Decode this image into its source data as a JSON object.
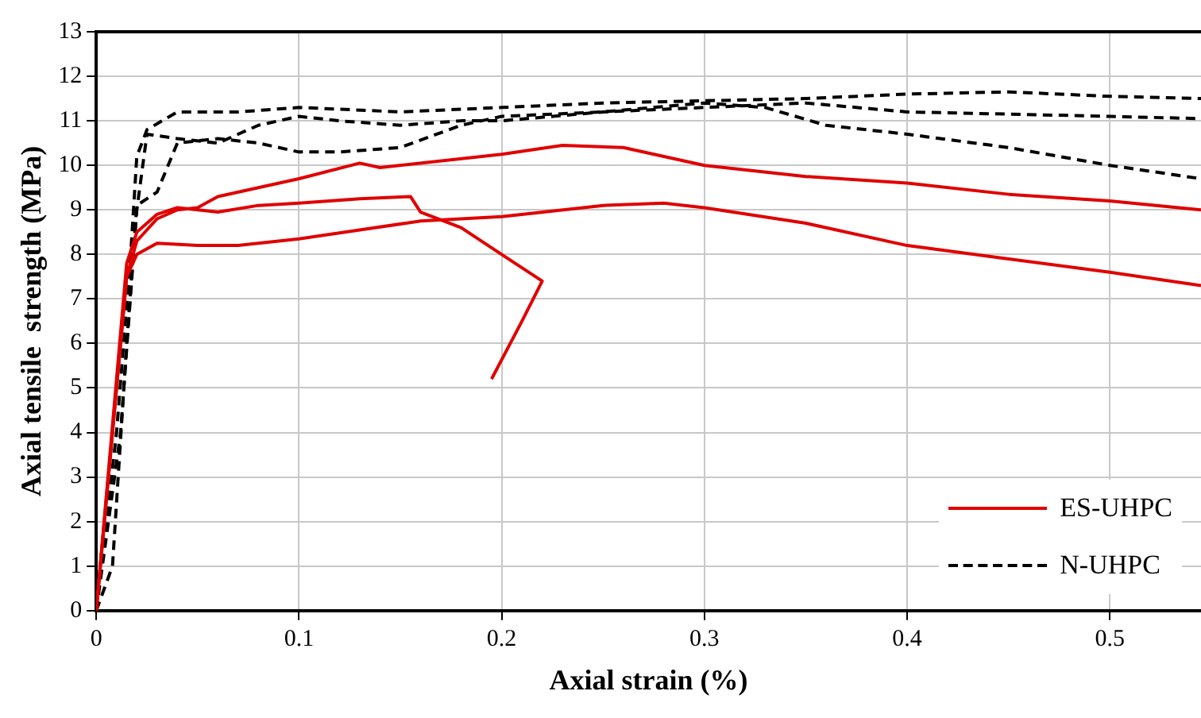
{
  "chart_data": {
    "type": "line",
    "xlabel": "Axial strain (%)",
    "ylabel": "Axial tensile  strength (MPa)",
    "xlim": [
      0,
      0.545
    ],
    "ylim": [
      0,
      13
    ],
    "xticks": [
      0,
      0.1,
      0.2,
      0.3,
      0.4,
      0.5
    ],
    "yticks": [
      0,
      1,
      2,
      3,
      4,
      5,
      6,
      7,
      8,
      9,
      10,
      11,
      12,
      13
    ],
    "grid": true,
    "legend": "bottom right",
    "marker": "none",
    "series": [
      {
        "name": "ES-UHPC",
        "color": "#e00000",
        "line_style": "solid",
        "x": [
          0,
          0.01,
          0.015,
          0.02,
          0.03,
          0.04,
          0.05,
          0.06,
          0.08,
          0.1,
          0.13,
          0.14,
          0.2,
          0.23,
          0.26,
          0.3,
          0.35,
          0.4,
          0.45,
          0.5,
          0.545
        ],
        "values": [
          0,
          5,
          7.5,
          8.3,
          8.8,
          9.0,
          9.05,
          9.3,
          9.5,
          9.7,
          10.05,
          9.95,
          10.25,
          10.45,
          10.4,
          10.0,
          9.75,
          9.6,
          9.35,
          9.2,
          9.0
        ]
      },
      {
        "color": "#e00000",
        "line_style": "solid",
        "x": [
          0,
          0.015,
          0.02,
          0.03,
          0.05,
          0.07,
          0.1,
          0.13,
          0.16,
          0.2,
          0.25,
          0.28,
          0.3,
          0.35,
          0.4,
          0.45,
          0.5,
          0.545
        ],
        "values": [
          0,
          7.5,
          8.0,
          8.25,
          8.2,
          8.2,
          8.35,
          8.55,
          8.75,
          8.85,
          9.1,
          9.15,
          9.05,
          8.7,
          8.2,
          7.9,
          7.6,
          7.3
        ]
      },
      {
        "color": "#e00000",
        "line_style": "solid",
        "x": [
          0,
          0.015,
          0.02,
          0.03,
          0.04,
          0.06,
          0.08,
          0.1,
          0.13,
          0.155,
          0.16,
          0.18,
          0.2,
          0.22,
          0.21,
          0.195
        ],
        "values": [
          0,
          7.8,
          8.5,
          8.9,
          9.05,
          8.95,
          9.1,
          9.15,
          9.25,
          9.3,
          8.95,
          8.6,
          8.0,
          7.4,
          6.5,
          5.2
        ]
      },
      {
        "name": "N-UHPC",
        "color": "#000000",
        "line_style": "dashed",
        "x": [
          0,
          0.01,
          0.017,
          0.02,
          0.025,
          0.04,
          0.07,
          0.1,
          0.15,
          0.2,
          0.25,
          0.3,
          0.35,
          0.4,
          0.45,
          0.5,
          0.545
        ],
        "values": [
          0,
          4,
          8,
          10.2,
          10.8,
          11.2,
          11.2,
          11.3,
          11.2,
          11.3,
          11.4,
          11.45,
          11.5,
          11.6,
          11.65,
          11.55,
          11.5
        ]
      },
      {
        "color": "#000000",
        "line_style": "dashed",
        "x": [
          0,
          0.012,
          0.02,
          0.025,
          0.04,
          0.06,
          0.08,
          0.1,
          0.12,
          0.15,
          0.18,
          0.2,
          0.25,
          0.3,
          0.35,
          0.4,
          0.45,
          0.5,
          0.545
        ],
        "values": [
          0,
          4,
          9,
          10.7,
          10.6,
          10.5,
          10.9,
          11.1,
          11.0,
          10.9,
          11.0,
          11.0,
          11.2,
          11.3,
          11.4,
          11.2,
          11.15,
          11.1,
          11.05
        ]
      },
      {
        "color": "#000000",
        "line_style": "dashed",
        "x": [
          0,
          0.008,
          0.015,
          0.02,
          0.03,
          0.04,
          0.06,
          0.08,
          0.1,
          0.12,
          0.15,
          0.18,
          0.2,
          0.25,
          0.3,
          0.33,
          0.36,
          0.4,
          0.45,
          0.5,
          0.545
        ],
        "values": [
          0,
          1,
          6,
          9.1,
          9.4,
          10.5,
          10.6,
          10.5,
          10.3,
          10.3,
          10.4,
          10.9,
          11.1,
          11.2,
          11.4,
          11.3,
          10.9,
          10.7,
          10.4,
          10.0,
          9.7
        ]
      }
    ]
  }
}
